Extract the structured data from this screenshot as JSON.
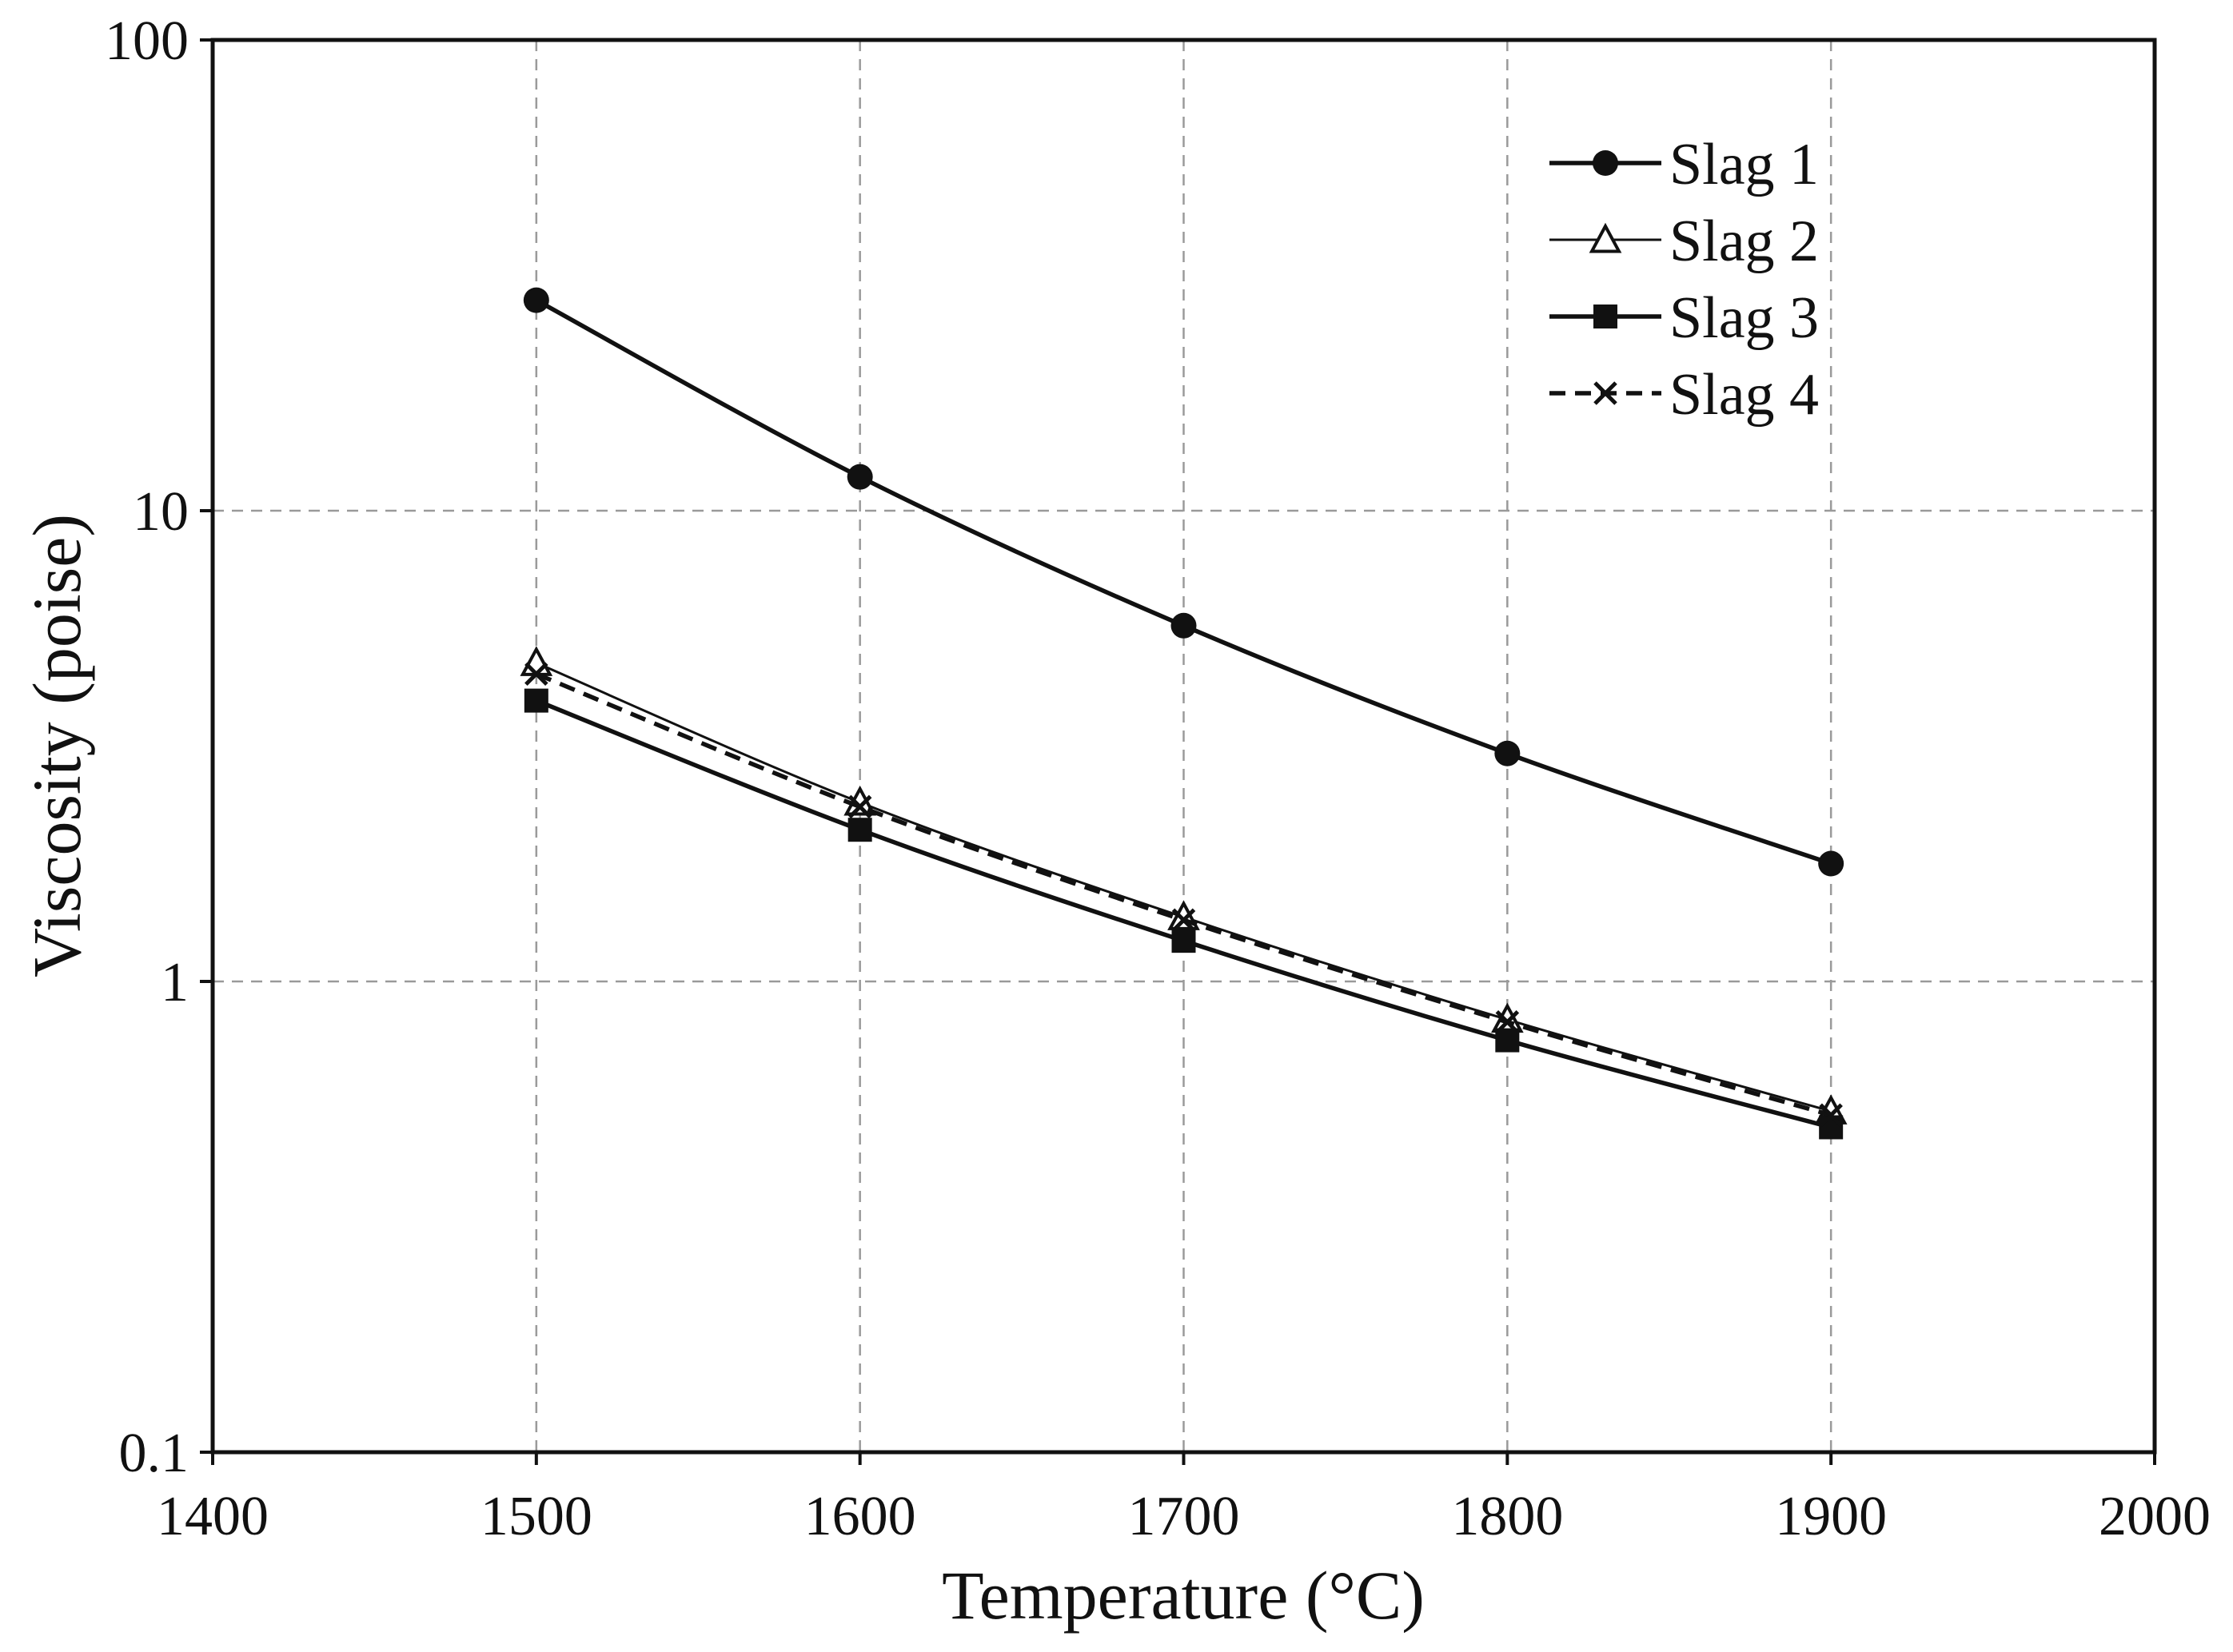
{
  "chart_data": {
    "type": "line",
    "title": "",
    "xlabel": "Temperature (°C)",
    "ylabel": "Viscosity (poise)",
    "xscale": "linear",
    "yscale": "log",
    "xlim": [
      1400,
      2000
    ],
    "ylim": [
      0.1,
      100
    ],
    "xticks": [
      1400,
      1500,
      1600,
      1700,
      1800,
      1900,
      2000
    ],
    "xtick_labels": [
      "1400",
      "1500",
      "1600",
      "1700",
      "1800",
      "1900",
      "2000"
    ],
    "yticks": [
      0.1,
      1,
      10,
      100
    ],
    "ytick_labels": [
      "0.1",
      "1",
      "10",
      "100"
    ],
    "grid": true,
    "legend_position": "top-right",
    "x": [
      1500,
      1600,
      1700,
      1800,
      1900
    ],
    "series": [
      {
        "name": "Slag 1",
        "marker": "circle",
        "dash": "solid",
        "stroke": "heavy",
        "values": [
          28.0,
          11.8,
          5.7,
          3.05,
          1.78
        ]
      },
      {
        "name": "Slag 2",
        "marker": "triangle-open",
        "dash": "solid",
        "stroke": "thin",
        "values": [
          4.75,
          2.4,
          1.37,
          0.83,
          0.53
        ]
      },
      {
        "name": "Slag 3",
        "marker": "square",
        "dash": "solid",
        "stroke": "heavy",
        "values": [
          3.95,
          2.1,
          1.22,
          0.75,
          0.49
        ]
      },
      {
        "name": "Slag 4",
        "marker": "x",
        "dash": "dashed",
        "stroke": "heavy",
        "values": [
          4.5,
          2.35,
          1.35,
          0.82,
          0.52
        ]
      }
    ],
    "colors": {
      "line": "#111111",
      "grid": "#9a9a9a",
      "background": "#ffffff"
    }
  }
}
